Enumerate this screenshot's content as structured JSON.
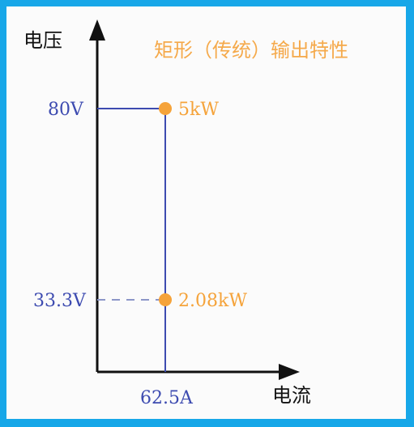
{
  "title": "矩形（传统）输出特性",
  "y_axis_label": "电压",
  "x_axis_label": "电流",
  "y_ticks": [
    "80V",
    "33.3V"
  ],
  "x_ticks": [
    "62.5A"
  ],
  "points": [
    {
      "label": "5kW",
      "voltage": 80,
      "current": 62.5
    },
    {
      "label": "2.08kW",
      "voltage": 33.3,
      "current": 62.5
    }
  ],
  "colors": {
    "frame": "#17a7e8",
    "axis": "#111111",
    "line": "#3d4bb0",
    "tick_label": "#3d4bb0",
    "accent": "#f5a33a",
    "title": "#f5a94a"
  }
}
